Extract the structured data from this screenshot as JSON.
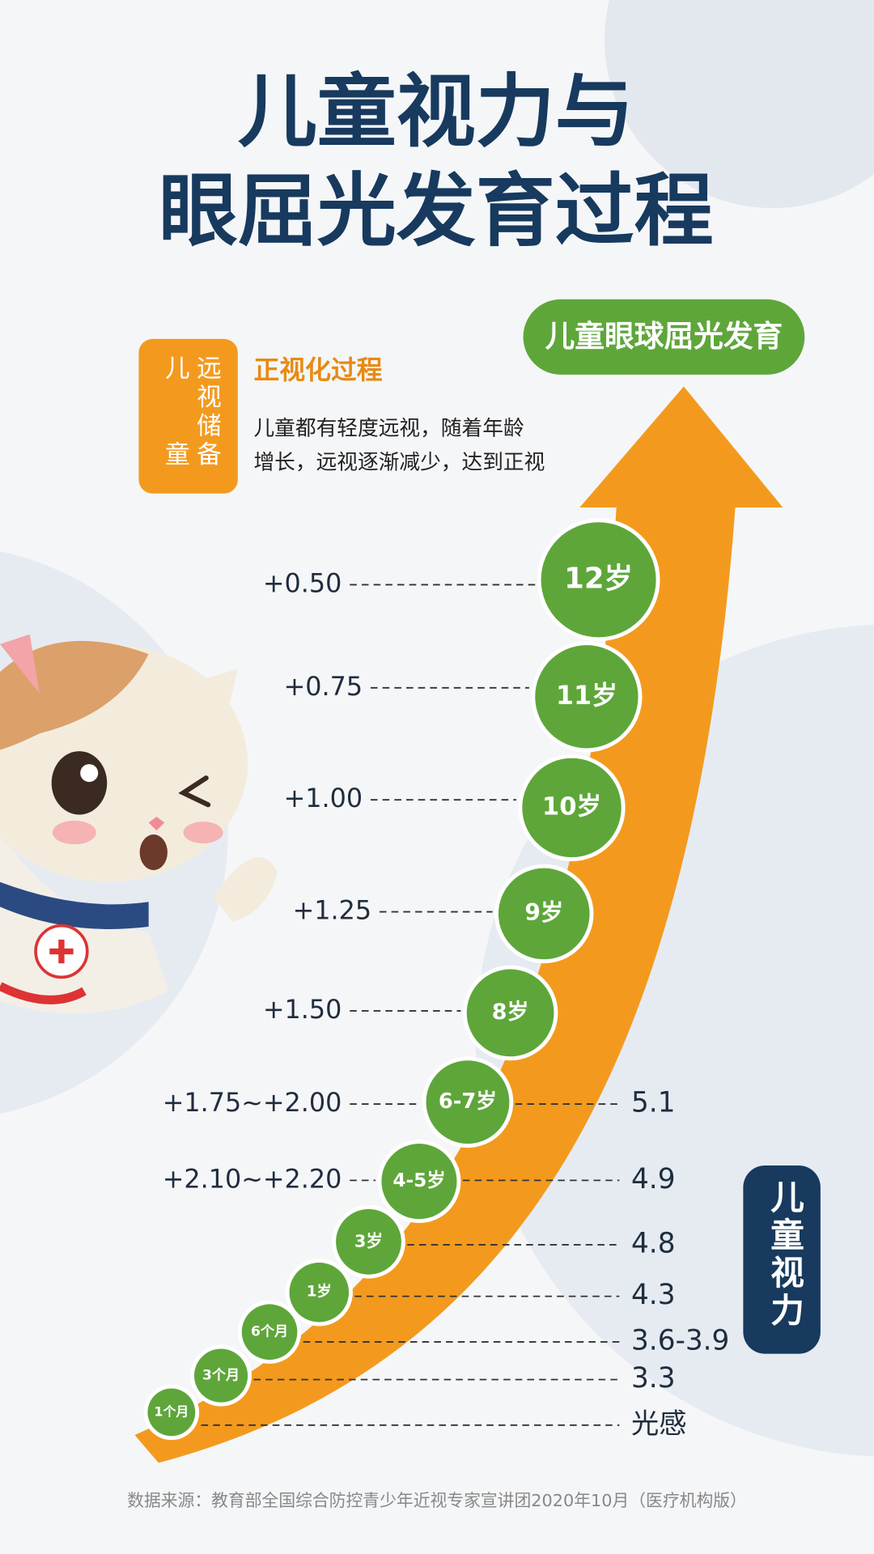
{
  "title": {
    "line1": "儿童视力与",
    "line2": "眼屈光发育过程"
  },
  "badge": "儿童眼球屈光发育",
  "side_tag": {
    "left": "儿童",
    "right": "远视储备"
  },
  "process": {
    "title": "正视化过程",
    "lines": [
      "儿童都有轻度远视，随着年龄",
      "增长，远视逐渐减少，达到正视"
    ]
  },
  "vision_label": "儿童视力",
  "stages": [
    {
      "age": "1个月",
      "vision": "光感"
    },
    {
      "age": "3个月",
      "vision": "3.3"
    },
    {
      "age": "6个月",
      "vision": "3.6-3.9"
    },
    {
      "age": "1岁",
      "vision": "4.3"
    },
    {
      "age": "3岁",
      "vision": "4.8"
    },
    {
      "age": "4-5岁",
      "refraction": "+2.10~+2.20",
      "vision": "4.9"
    },
    {
      "age": "6-7岁",
      "refraction": "+1.75~+2.00",
      "vision": "5.1"
    },
    {
      "age": "8岁",
      "refraction": "+1.50"
    },
    {
      "age": "9岁",
      "refraction": "+1.25"
    },
    {
      "age": "10岁",
      "refraction": "+1.00"
    },
    {
      "age": "11岁",
      "refraction": "+0.75"
    },
    {
      "age": "12岁",
      "refraction": "+0.50"
    }
  ],
  "source": "数据来源：教育部全国综合防控青少年近视专家宣讲团2020年10月（医疗机构版）"
}
